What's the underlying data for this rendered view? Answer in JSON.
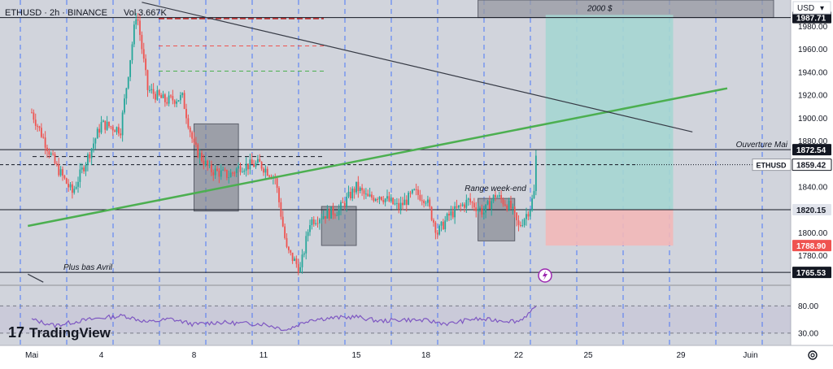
{
  "header": {
    "symbol_line": "ETHUSD · 2h · BINANCE",
    "volume_label": "Vol",
    "volume_value": "3.667K"
  },
  "watermark": {
    "brand": "TradingView"
  },
  "currency_button": "USD",
  "colors": {
    "pane_bg": "#d1d4dc",
    "up_candle": "#26a69a",
    "down_candle": "#ef5350",
    "trend_green": "#4caf50",
    "trend_dark": "#363a45",
    "rsi_line": "#7e57c2",
    "target_zone": "#a5d6d2",
    "stop_zone": "#f2b8b8",
    "range_box": "#787b86"
  },
  "chart_data": {
    "type": "candlestick",
    "symbol": "ETHUSD",
    "interval": "2h",
    "exchange": "BINANCE",
    "x_tick_labels": [
      "Mai",
      "4",
      "8",
      "11",
      "15",
      "18",
      "22",
      "25",
      "29",
      "Juin"
    ],
    "x_tick_dates": [
      "2022-05-01",
      "2022-05-04",
      "2022-05-08",
      "2022-05-11",
      "2022-05-15",
      "2022-05-18",
      "2022-05-22",
      "2022-05-25",
      "2022-05-29",
      "2022-06-01"
    ],
    "y_ticks": [
      1780.0,
      1800.0,
      1820.0,
      1840.0,
      1860.0,
      1880.0,
      1900.0,
      1920.0,
      1940.0,
      1960.0,
      1980.0
    ],
    "ylim": [
      1755,
      2003
    ],
    "price_path": {
      "dates": [
        "2022-05-01",
        "2022-05-02",
        "2022-05-02 18:00",
        "2022-05-03 12:00",
        "2022-05-04",
        "2022-05-04 20:00",
        "2022-05-05 12:00",
        "2022-05-05 14:00",
        "2022-05-06",
        "2022-05-06 18:00",
        "2022-05-07 12:00",
        "2022-05-08",
        "2022-05-08 16:00",
        "2022-05-09 12:00",
        "2022-05-10",
        "2022-05-10 20:00",
        "2022-05-11 12:00",
        "2022-05-12",
        "2022-05-12 14:00",
        "2022-05-13",
        "2022-05-13 12:00",
        "2022-05-14 06:00",
        "2022-05-15",
        "2022-05-15 12:00",
        "2022-05-16",
        "2022-05-16 20:00",
        "2022-05-17 12:00",
        "2022-05-18",
        "2022-05-18 12:00",
        "2022-05-19",
        "2022-05-19 20:00",
        "2022-05-20 12:00",
        "2022-05-21",
        "2022-05-21 16:00",
        "2022-05-22",
        "2022-05-22 12:00",
        "2022-05-22 16:00",
        "2022-05-22 18:00"
      ],
      "prices": [
        1905,
        1860,
        1835,
        1870,
        1895,
        1890,
        1990,
        1985,
        1925,
        1915,
        1918,
        1875,
        1855,
        1850,
        1858,
        1860,
        1848,
        1785,
        1768,
        1810,
        1815,
        1820,
        1840,
        1830,
        1833,
        1822,
        1835,
        1830,
        1800,
        1815,
        1828,
        1818,
        1833,
        1822,
        1805,
        1822,
        1835,
        1866
      ]
    },
    "horizontal_levels": [
      {
        "label": "Ouverture Mai",
        "price": 1872.54
      },
      {
        "label": "Plus bas Avril",
        "price": 1765.53
      },
      {
        "label": "",
        "price": 1987.71
      },
      {
        "label": "",
        "price": 1820.15
      }
    ],
    "price_tags": [
      {
        "label": "",
        "price": 1988.33
      },
      {
        "label": "",
        "price": 1987.71
      },
      {
        "label": "",
        "price": 1872.54
      },
      {
        "label": "ETHUSD",
        "price": 1859.42
      },
      {
        "label": "",
        "price": 1820.15
      },
      {
        "label": "",
        "price": 1788.9
      },
      {
        "label": "",
        "price": 1765.53
      }
    ],
    "annotations": [
      {
        "text": "2000 $"
      },
      {
        "text": "Range week-end"
      },
      {
        "text": "Ouverture Mai"
      },
      {
        "text": "Plus bas Avril"
      }
    ],
    "trendlines": [
      {
        "name": "",
        "points": [
          [
            "2022-04-30 20:00",
            1806
          ],
          [
            "2022-05-31",
            1926
          ]
        ]
      },
      {
        "name": "",
        "points": [
          [
            "2022-05-05 18:00",
            2001
          ],
          [
            "2022-05-29 12:00",
            1888
          ]
        ]
      },
      {
        "name": "",
        "points": [
          [
            "2022-04-30 20:00",
            1764
          ],
          [
            "2022-05-01 12:00",
            1757
          ]
        ]
      }
    ],
    "rectangles": [
      {
        "label": "",
        "from": "2022-05-08",
        "to": "2022-05-09 22:00",
        "top": 1895,
        "bottom": 1819
      },
      {
        "label": "",
        "from": "2022-05-13 12:00",
        "to": "2022-05-15",
        "top": 1823,
        "bottom": 1789
      },
      {
        "label": "Range week-end",
        "from": "2022-05-20 06:00",
        "to": "2022-05-21 20:00",
        "top": 1830,
        "bottom": 1793
      },
      {
        "label": "2000 $",
        "from": "2022-05-20 06:00",
        "to": "2022-06-02",
        "top": 2003,
        "bottom": 1987.71
      }
    ],
    "position_tool": {
      "from": "2022-05-23 04:00",
      "to": "2022-05-28 16:00",
      "entry": 1820.15,
      "target": 1990,
      "stop": 1788.9
    },
    "rsi": {
      "levels": [
        80.0,
        30.0
      ],
      "dates": [
        "2022-05-01",
        "2022-05-02",
        "2022-05-03",
        "2022-05-04",
        "2022-05-05",
        "2022-05-06",
        "2022-05-07",
        "2022-05-08",
        "2022-05-09",
        "2022-05-10",
        "2022-05-11",
        "2022-05-12",
        "2022-05-13",
        "2022-05-14",
        "2022-05-15",
        "2022-05-16",
        "2022-05-17",
        "2022-05-18",
        "2022-05-19",
        "2022-05-20",
        "2022-05-21",
        "2022-05-22",
        "2022-05-22 18:00"
      ],
      "values": [
        55,
        44,
        52,
        58,
        62,
        50,
        56,
        46,
        50,
        48,
        47,
        36,
        55,
        58,
        60,
        52,
        55,
        53,
        47,
        56,
        54,
        52,
        76
      ]
    }
  }
}
